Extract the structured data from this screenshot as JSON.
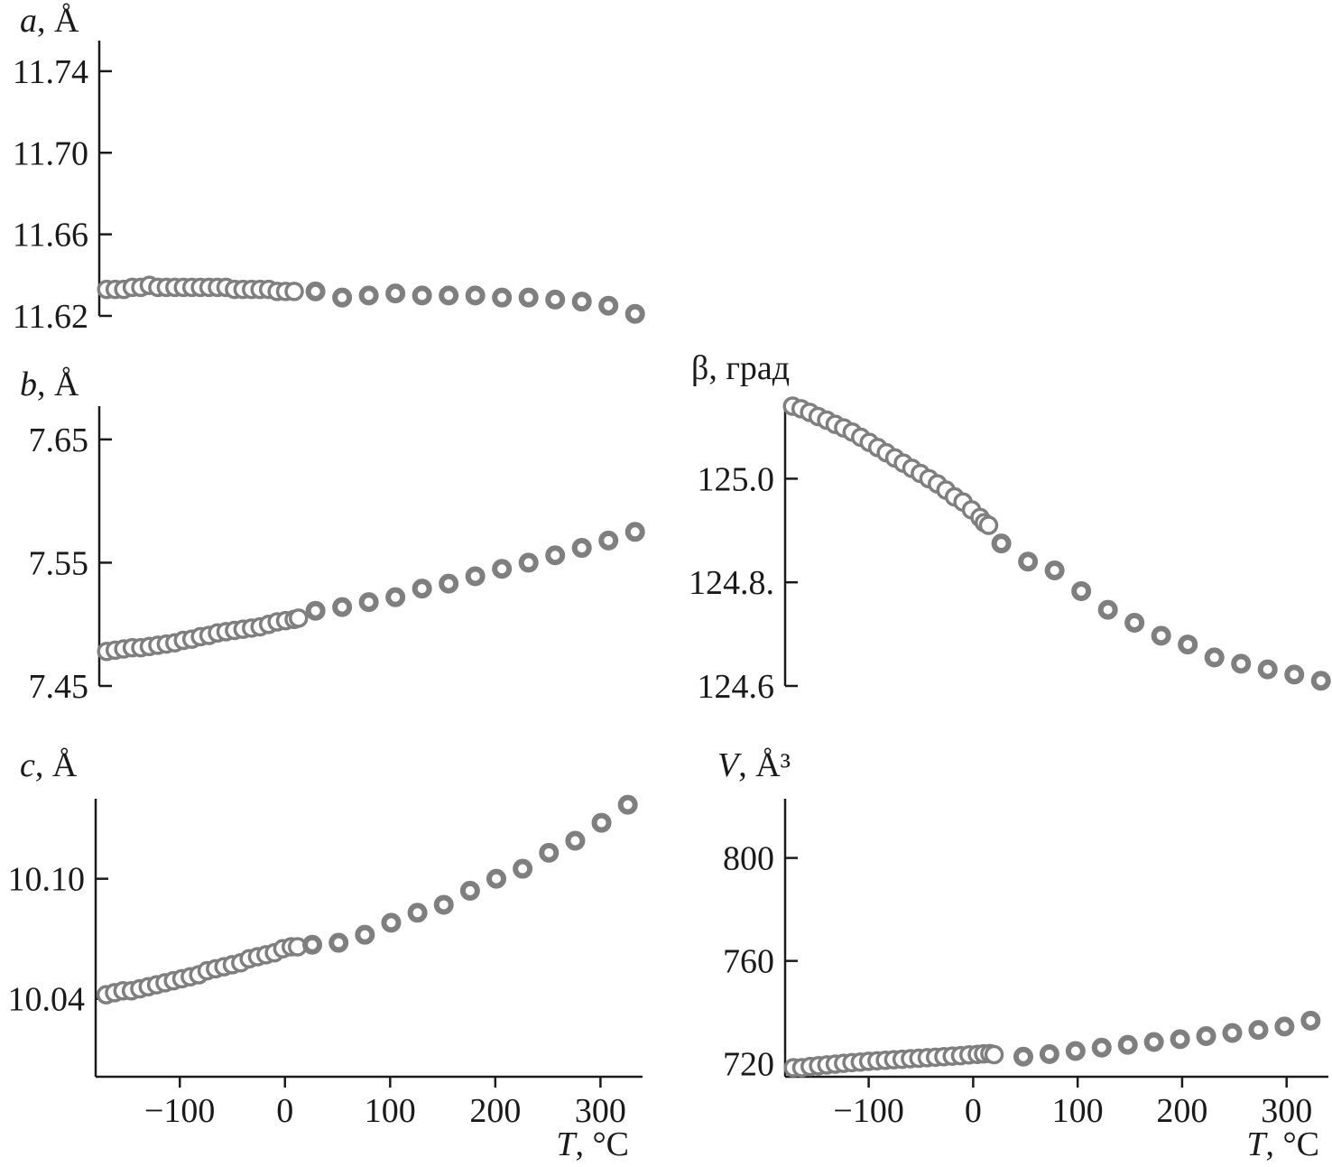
{
  "chart_data": [
    {
      "id": "a",
      "type": "scatter",
      "ylabel_var": "a",
      "ylabel_unit": ", Å",
      "xlabel_var": "",
      "xlabel_unit": "",
      "xlim": [
        -175,
        335
      ],
      "ylim": [
        11.62,
        11.755
      ],
      "yticks": [
        11.62,
        11.66,
        11.7,
        11.74
      ],
      "ytick_labels": [
        "11.62",
        "11.66",
        "11.70",
        "11.74"
      ],
      "xticks": [],
      "xtick_labels": [],
      "series": [
        {
          "x": [
            -168,
            -160,
            -152,
            -144,
            -136,
            -128,
            -120,
            -112,
            -104,
            -96,
            -88,
            -80,
            -72,
            -64,
            -56,
            -48,
            -40,
            -32,
            -24,
            -16,
            -8,
            0,
            8
          ],
          "y": [
            11.633,
            11.633,
            11.633,
            11.634,
            11.634,
            11.635,
            11.634,
            11.634,
            11.634,
            11.634,
            11.634,
            11.634,
            11.634,
            11.634,
            11.634,
            11.633,
            11.633,
            11.633,
            11.633,
            11.633,
            11.632,
            11.632,
            11.632
          ]
        },
        {
          "x": [
            28,
            53,
            78,
            103,
            128,
            153,
            178,
            203,
            228,
            253,
            278,
            303,
            328
          ],
          "y": [
            11.632,
            11.629,
            11.63,
            11.631,
            11.63,
            11.63,
            11.63,
            11.629,
            11.629,
            11.628,
            11.627,
            11.625,
            11.621
          ]
        }
      ]
    },
    {
      "id": "b",
      "type": "scatter",
      "ylabel_var": "b",
      "ylabel_unit": ", Å",
      "xlabel_var": "",
      "xlabel_unit": "",
      "xlim": [
        -175,
        335
      ],
      "ylim": [
        7.45,
        7.677
      ],
      "yticks": [
        7.45,
        7.55,
        7.65
      ],
      "ytick_labels": [
        "7.45",
        "7.55",
        "7.65"
      ],
      "xticks": [],
      "xtick_labels": [],
      "series": [
        {
          "x": [
            -168,
            -160,
            -152,
            -144,
            -136,
            -128,
            -120,
            -112,
            -104,
            -96,
            -88,
            -80,
            -72,
            -64,
            -56,
            -48,
            -40,
            -32,
            -24,
            -16,
            -8,
            0,
            8,
            12
          ],
          "y": [
            7.478,
            7.479,
            7.48,
            7.481,
            7.481,
            7.482,
            7.483,
            7.484,
            7.485,
            7.487,
            7.488,
            7.49,
            7.491,
            7.493,
            7.494,
            7.495,
            7.496,
            7.497,
            7.498,
            7.5,
            7.502,
            7.503,
            7.504,
            7.505
          ]
        },
        {
          "x": [
            28,
            53,
            78,
            103,
            128,
            153,
            178,
            203,
            228,
            253,
            278,
            303,
            328
          ],
          "y": [
            7.511,
            7.514,
            7.518,
            7.522,
            7.529,
            7.533,
            7.539,
            7.545,
            7.55,
            7.556,
            7.562,
            7.568,
            7.575
          ]
        }
      ]
    },
    {
      "id": "c",
      "type": "scatter",
      "ylabel_var": "c",
      "ylabel_unit": ", Å",
      "xlabel_var": "T",
      "xlabel_unit": ", °C",
      "xlim": [
        -180,
        340
      ],
      "ylim": [
        10.001,
        10.14
      ],
      "yticks": [
        10.04,
        10.1
      ],
      "ytick_labels": [
        "10.04",
        "10.10"
      ],
      "xticks": [
        -100,
        0,
        100,
        200,
        300
      ],
      "xtick_labels": [
        "−100",
        "0",
        "100",
        "200",
        "300"
      ],
      "series": [
        {
          "x": [
            -170,
            -162,
            -154,
            -146,
            -138,
            -130,
            -122,
            -114,
            -106,
            -98,
            -90,
            -82,
            -74,
            -66,
            -58,
            -50,
            -42,
            -34,
            -26,
            -18,
            -10,
            -2,
            6,
            12
          ],
          "y": [
            10.042,
            10.043,
            10.044,
            10.044,
            10.045,
            10.046,
            10.047,
            10.048,
            10.049,
            10.05,
            10.051,
            10.052,
            10.054,
            10.055,
            10.056,
            10.057,
            10.058,
            10.06,
            10.061,
            10.062,
            10.063,
            10.065,
            10.066,
            10.066
          ]
        },
        {
          "x": [
            26,
            51,
            76,
            101,
            126,
            151,
            176,
            201,
            226,
            251,
            276,
            301,
            326
          ],
          "y": [
            10.067,
            10.068,
            10.072,
            10.078,
            10.083,
            10.087,
            10.094,
            10.1,
            10.105,
            10.113,
            10.119,
            10.128,
            10.137
          ]
        }
      ]
    },
    {
      "id": "beta",
      "type": "scatter",
      "ylabel_var": "",
      "ylabel_unit": "β, град",
      "xlabel_var": "",
      "xlabel_unit": "",
      "xlim": [
        -175,
        335
      ],
      "ylim": [
        124.6,
        125.14
      ],
      "yticks": [
        124.6,
        124.8,
        125.0
      ],
      "ytick_labels": [
        "124.6",
        "124.8.",
        "125.0"
      ],
      "xticks": [],
      "xtick_labels": [],
      "series": [
        {
          "x": [
            -168,
            -160,
            -152,
            -144,
            -136,
            -128,
            -120,
            -112,
            -104,
            -96,
            -88,
            -80,
            -72,
            -64,
            -56,
            -48,
            -40,
            -32,
            -24,
            -16,
            -8,
            0,
            8,
            12,
            16
          ],
          "y": [
            125.14,
            125.135,
            125.128,
            125.12,
            125.113,
            125.105,
            125.098,
            125.09,
            125.08,
            125.07,
            125.06,
            125.05,
            125.04,
            125.03,
            125.02,
            125.01,
            125.0,
            124.99,
            124.978,
            124.965,
            124.955,
            124.94,
            124.925,
            124.915,
            124.91
          ]
        },
        {
          "x": [
            28,
            53,
            78,
            103,
            128,
            153,
            178,
            203,
            228,
            253,
            278,
            303,
            328
          ],
          "y": [
            124.875,
            124.84,
            124.823,
            124.783,
            124.747,
            124.722,
            124.697,
            124.68,
            124.655,
            124.643,
            124.632,
            124.622,
            124.61
          ]
        }
      ]
    },
    {
      "id": "V",
      "type": "scatter",
      "ylabel_var": "V",
      "ylabel_unit": ", Å³",
      "xlabel_var": "T",
      "xlabel_unit": ", °C",
      "xlim": [
        -180,
        340
      ],
      "ylim": [
        715,
        823
      ],
      "yticks": [
        720,
        760,
        800
      ],
      "ytick_labels": [
        "720",
        "760",
        "800"
      ],
      "xticks": [
        -100,
        0,
        100,
        200,
        300
      ],
      "xtick_labels": [
        "−100",
        "0",
        "100",
        "200",
        "300"
      ],
      "series": [
        {
          "x": [
            -172,
            -164,
            -156,
            -148,
            -140,
            -132,
            -124,
            -116,
            -108,
            -100,
            -92,
            -84,
            -76,
            -68,
            -60,
            -52,
            -44,
            -36,
            -28,
            -20,
            -12,
            -4,
            4,
            10,
            16,
            20
          ],
          "y": [
            718.5,
            718.5,
            719.0,
            719.3,
            719.6,
            719.9,
            720.2,
            720.5,
            720.7,
            721.0,
            721.2,
            721.4,
            721.6,
            721.8,
            722.0,
            722.2,
            722.4,
            722.6,
            722.8,
            723.0,
            723.2,
            723.5,
            723.7,
            723.9,
            724.0,
            723.6
          ]
        },
        {
          "x": [
            48,
            73,
            98,
            123,
            148,
            173,
            198,
            223,
            248,
            273,
            298,
            323
          ],
          "y": [
            722.8,
            723.8,
            725.0,
            726.3,
            727.4,
            728.5,
            729.6,
            730.8,
            732.0,
            733.2,
            734.5,
            736.8
          ]
        }
      ]
    }
  ]
}
